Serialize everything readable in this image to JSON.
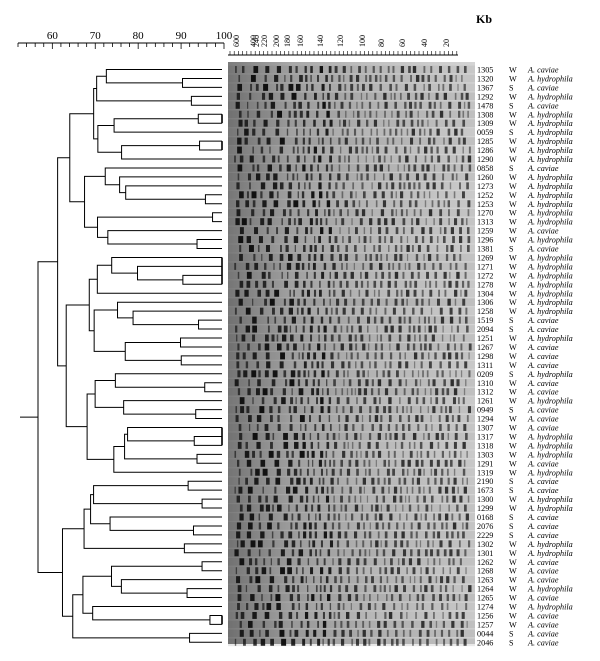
{
  "similarity_scale": {
    "ticks": [
      60,
      70,
      80,
      90,
      100
    ],
    "min": 52,
    "max": 100
  },
  "size_scale": {
    "unit": "Kb",
    "ticks": [
      "600",
      "400",
      "240",
      "220",
      "200",
      "180",
      "160",
      "140",
      "120",
      "100",
      "80",
      "60",
      "40",
      "20"
    ]
  },
  "isolates": [
    {
      "id": "1305",
      "src": "W",
      "species": "A. caviae"
    },
    {
      "id": "1320",
      "src": "W",
      "species": "A. hydrophila"
    },
    {
      "id": "1367",
      "src": "S",
      "species": "A. caviae"
    },
    {
      "id": "1292",
      "src": "W",
      "species": "A. hydrophila"
    },
    {
      "id": "1478",
      "src": "S",
      "species": "A. caviae"
    },
    {
      "id": "1308",
      "src": "W",
      "species": "A. hydrophila"
    },
    {
      "id": "1309",
      "src": "W",
      "species": "A. hydrophila"
    },
    {
      "id": "0059",
      "src": "S",
      "species": "A. hydrophila"
    },
    {
      "id": "1285",
      "src": "W",
      "species": "A. hydrophila"
    },
    {
      "id": "1286",
      "src": "W",
      "species": "A. hydrophila"
    },
    {
      "id": "1290",
      "src": "W",
      "species": "A. hydrophila"
    },
    {
      "id": "0858",
      "src": "S",
      "species": "A. caviae"
    },
    {
      "id": "1260",
      "src": "W",
      "species": "A. hydrophila"
    },
    {
      "id": "1273",
      "src": "W",
      "species": "A. hydrophila"
    },
    {
      "id": "1252",
      "src": "W",
      "species": "A. hydrophila"
    },
    {
      "id": "1253",
      "src": "W",
      "species": "A. hydrophila"
    },
    {
      "id": "1270",
      "src": "W",
      "species": "A. hydrophila"
    },
    {
      "id": "1313",
      "src": "W",
      "species": "A. hydrophila"
    },
    {
      "id": "1259",
      "src": "W",
      "species": "A. caviae"
    },
    {
      "id": "1296",
      "src": "W",
      "species": "A. hydrophila"
    },
    {
      "id": "1381",
      "src": "S",
      "species": "A. caviae"
    },
    {
      "id": "1269",
      "src": "W",
      "species": "A. hydrophila"
    },
    {
      "id": "1271",
      "src": "W",
      "species": "A. hydrophila"
    },
    {
      "id": "1272",
      "src": "W",
      "species": "A. hydrophila"
    },
    {
      "id": "1278",
      "src": "W",
      "species": "A. hydrophila"
    },
    {
      "id": "1304",
      "src": "W",
      "species": "A. hydrophila"
    },
    {
      "id": "1306",
      "src": "W",
      "species": "A. hydrophila"
    },
    {
      "id": "1258",
      "src": "W",
      "species": "A. hydrophila"
    },
    {
      "id": "1519",
      "src": "S",
      "species": "A. caviae"
    },
    {
      "id": "2094",
      "src": "S",
      "species": "A. caviae"
    },
    {
      "id": "1251",
      "src": "W",
      "species": "A. hydrophila"
    },
    {
      "id": "1267",
      "src": "W",
      "species": "A. caviae"
    },
    {
      "id": "1298",
      "src": "W",
      "species": "A. caviae"
    },
    {
      "id": "1311",
      "src": "W",
      "species": "A. caviae"
    },
    {
      "id": "0209",
      "src": "S",
      "species": "A. hydrophila"
    },
    {
      "id": "1310",
      "src": "W",
      "species": "A. caviae"
    },
    {
      "id": "1312",
      "src": "W",
      "species": "A. caviae"
    },
    {
      "id": "1261",
      "src": "W",
      "species": "A. hydrophila"
    },
    {
      "id": "0949",
      "src": "S",
      "species": "A. caviae"
    },
    {
      "id": "1294",
      "src": "W",
      "species": "A. caviae"
    },
    {
      "id": "1307",
      "src": "W",
      "species": "A. caviae"
    },
    {
      "id": "1317",
      "src": "W",
      "species": "A. hydrophila"
    },
    {
      "id": "1318",
      "src": "W",
      "species": "A. hydrophila"
    },
    {
      "id": "1303",
      "src": "W",
      "species": "A. hydrophila"
    },
    {
      "id": "1291",
      "src": "W",
      "species": "A. caviae"
    },
    {
      "id": "1319",
      "src": "W",
      "species": "A. hydrophila"
    },
    {
      "id": "2190",
      "src": "S",
      "species": "A. caviae"
    },
    {
      "id": "1673",
      "src": "S",
      "species": "A. caviae"
    },
    {
      "id": "1300",
      "src": "W",
      "species": "A. hydrophila"
    },
    {
      "id": "1299",
      "src": "W",
      "species": "A. hydrophila"
    },
    {
      "id": "0168",
      "src": "S",
      "species": "A. caviae"
    },
    {
      "id": "2076",
      "src": "S",
      "species": "A. caviae"
    },
    {
      "id": "2229",
      "src": "S",
      "species": "A. caviae"
    },
    {
      "id": "1302",
      "src": "W",
      "species": "A. hydrophila"
    },
    {
      "id": "1301",
      "src": "W",
      "species": "A. hydrophila"
    },
    {
      "id": "1262",
      "src": "W",
      "species": "A. caviae"
    },
    {
      "id": "1268",
      "src": "W",
      "species": "A. caviae"
    },
    {
      "id": "1263",
      "src": "W",
      "species": "A. caviae"
    },
    {
      "id": "1264",
      "src": "W",
      "species": "A. hydrophila"
    },
    {
      "id": "1265",
      "src": "W",
      "species": "A. caviae"
    },
    {
      "id": "1274",
      "src": "W",
      "species": "A. hydrophila"
    },
    {
      "id": "1256",
      "src": "W",
      "species": "A. caviae"
    },
    {
      "id": "1257",
      "src": "W",
      "species": "A. caviae"
    },
    {
      "id": "0044",
      "src": "S",
      "species": "A. caviae"
    },
    {
      "id": "2046",
      "src": "S",
      "species": "A. caviae"
    }
  ],
  "tree": [
    [
      [
        [
          [
            [
              0,
              [
                1,
                2
              ]
            ],
            [
              3,
              4
            ]
          ],
          [
            [
              [
                5,
                6
              ],
              7
            ],
            [
              [
                8,
                9
              ],
              10
            ]
          ]
        ],
        [
          [
            11,
            [
              12,
              [
                13,
                [
                  14,
                  15
                ]
              ]
            ]
          ],
          [
            [
              16,
              17
            ],
            [
              18,
              [
                19,
                20
              ]
            ]
          ]
        ]
      ],
      [
        [
          [
            [
              21,
              [
                22,
                [
                  23,
                  24
                ]
              ]
            ],
            25
          ],
          [
            [
              26,
              [
                27,
                [
                  28,
                  29
                ]
              ]
            ],
            [
              [
                30,
                31
              ],
              [
                32,
                33
              ]
            ]
          ]
        ],
        [
          [
            [
              34,
              [
                35,
                36
              ]
            ],
            [
              37,
              [
                38,
                39
              ]
            ]
          ],
          [
            [
              [
                40,
                [
                  41,
                  42
                ]
              ],
              [
                43,
                44
              ]
            ],
            45
          ]
        ]
      ]
    ],
    [
      [
        [
          [
            [
              46,
              47
            ],
            [
              48,
              49
            ]
          ],
          [
            50,
            [
              51,
              52
            ]
          ]
        ],
        [
          53,
          54
        ]
      ],
      [
        [
          [
            [
              55,
              56
            ],
            [
              57,
              [
                58,
                59
              ]
            ]
          ],
          [
            60,
            [
              61,
              62
            ]
          ]
        ],
        [
          63,
          64
        ]
      ]
    ]
  ]
}
